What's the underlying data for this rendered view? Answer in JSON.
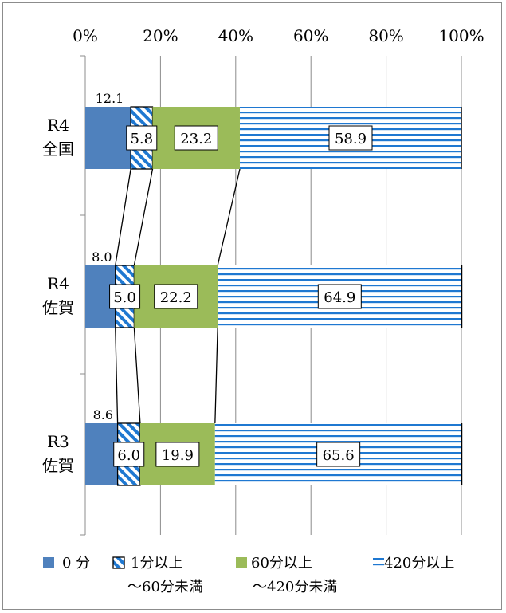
{
  "chart_data": {
    "type": "bar",
    "orientation": "horizontal",
    "stacked": "percent",
    "x_ticks": [
      "0%",
      "20%",
      "40%",
      "60%",
      "80%",
      "100%"
    ],
    "xlim": [
      0,
      100
    ],
    "grid": true,
    "legend_position": "bottom",
    "categories": [
      {
        "line1": "R4",
        "line2": "全国"
      },
      {
        "line1": "R4",
        "line2": "佐賀"
      },
      {
        "line1": "R3",
        "line2": "佐賀"
      }
    ],
    "series": [
      {
        "name": "0 分",
        "name2": "",
        "values": [
          12.1,
          8.0,
          8.6
        ],
        "labels": [
          "12.1",
          "8.0",
          "8.6"
        ],
        "color": "#4f81bd",
        "pattern": "solid"
      },
      {
        "name": "1分以上",
        "name2": "～60分未満",
        "values": [
          5.8,
          5.0,
          6.0
        ],
        "labels": [
          "5.8",
          "5.0",
          "6.0"
        ],
        "color": "#1f78d1",
        "pattern": "diagonal"
      },
      {
        "name": "60分以上",
        "name2": "～420分未満",
        "values": [
          23.2,
          22.2,
          19.9
        ],
        "labels": [
          "23.2",
          "22.2",
          "19.9"
        ],
        "color": "#9bbb59",
        "pattern": "solid"
      },
      {
        "name": "420分以上",
        "name2": "",
        "values": [
          58.9,
          64.9,
          65.6
        ],
        "labels": [
          "58.9",
          "64.9",
          "65.6"
        ],
        "color": "#1f78d1",
        "pattern": "horizontal"
      }
    ]
  }
}
